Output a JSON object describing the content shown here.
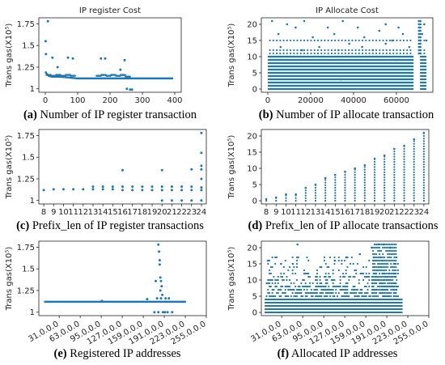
{
  "chart_data": [
    {
      "type": "scatter",
      "title": "IP register Cost",
      "caption_letter": "(a)",
      "caption": " Number of IP register transaction",
      "ylabel": "Trans gas(X10⁵)",
      "xlabel": "",
      "xlim": [
        -20,
        420
      ],
      "ylim": [
        0.96,
        1.82
      ],
      "xticks": [
        0,
        100,
        200,
        300,
        400
      ],
      "xtick_labels": [
        "0",
        "100",
        "200",
        "300",
        "400"
      ],
      "yticks": [
        1,
        1.25,
        1.5,
        1.75
      ],
      "ytick_labels": [
        "1",
        "1.25",
        "1.5",
        "1.75"
      ],
      "baseline": {
        "x": [
          0,
          5,
          10,
          20,
          40,
          60,
          100,
          105,
          150,
          180,
          200,
          240,
          260,
          300,
          395
        ],
        "y": [
          1.2,
          1.17,
          1.15,
          1.14,
          1.14,
          1.135,
          1.12,
          1.12,
          1.12,
          1.12,
          1.12,
          1.12,
          1.12,
          1.12,
          1.12
        ]
      },
      "band": [
        {
          "x": 10,
          "y": 1.16
        },
        {
          "x": 25,
          "y": 1.15
        },
        {
          "x": 40,
          "y": 1.16
        },
        {
          "x": 55,
          "y": 1.15
        },
        {
          "x": 70,
          "y": 1.16
        },
        {
          "x": 85,
          "y": 1.15
        },
        {
          "x": 165,
          "y": 1.15
        },
        {
          "x": 180,
          "y": 1.16
        },
        {
          "x": 195,
          "y": 1.15
        },
        {
          "x": 210,
          "y": 1.16
        },
        {
          "x": 225,
          "y": 1.15
        },
        {
          "x": 240,
          "y": 1.16
        },
        {
          "x": 255,
          "y": 1.14
        }
      ],
      "points": [
        {
          "x": 1,
          "y": 1.55
        },
        {
          "x": 2,
          "y": 1.4
        },
        {
          "x": 8,
          "y": 1.78
        },
        {
          "x": 22,
          "y": 1.36
        },
        {
          "x": 38,
          "y": 1.25
        },
        {
          "x": 70,
          "y": 1.36
        },
        {
          "x": 85,
          "y": 1.35
        },
        {
          "x": 172,
          "y": 1.35
        },
        {
          "x": 185,
          "y": 1.35
        },
        {
          "x": 232,
          "y": 1.22
        },
        {
          "x": 245,
          "y": 1.33
        },
        {
          "x": 252,
          "y": 1.0
        },
        {
          "x": 262,
          "y": 0.99
        },
        {
          "x": 268,
          "y": 0.99
        }
      ]
    },
    {
      "type": "scatter",
      "title": "IP Allocate Cost",
      "caption_letter": "(b)",
      "caption": " Number of IP allocate transaction",
      "ylabel": "Trans gas(X10⁵)",
      "xlabel": "",
      "xlim": [
        -3000,
        77000
      ],
      "ylim": [
        -1,
        22
      ],
      "xticks": [
        0,
        20000,
        40000,
        60000
      ],
      "xtick_labels": [
        "0",
        "20000",
        "40000",
        "60000"
      ],
      "yticks": [
        0,
        5,
        10,
        15,
        20
      ],
      "ytick_labels": [
        "0",
        "5",
        "10",
        "15",
        "20"
      ],
      "level_rows": [
        0,
        1,
        2,
        3,
        4,
        5,
        6,
        7,
        8,
        9,
        10
      ],
      "row_extent": [
        0,
        74000
      ],
      "gap_range": [
        68000,
        71000
      ],
      "scatter_points": [
        {
          "x": 2000,
          "y": 21
        },
        {
          "x": 5000,
          "y": 17
        },
        {
          "x": 9000,
          "y": 20
        },
        {
          "x": 13000,
          "y": 19
        },
        {
          "x": 17000,
          "y": 21
        },
        {
          "x": 21000,
          "y": 16
        },
        {
          "x": 24000,
          "y": 13
        },
        {
          "x": 28000,
          "y": 19
        },
        {
          "x": 31000,
          "y": 17
        },
        {
          "x": 35000,
          "y": 21
        },
        {
          "x": 38000,
          "y": 14
        },
        {
          "x": 42000,
          "y": 19
        },
        {
          "x": 45000,
          "y": 16
        },
        {
          "x": 49000,
          "y": 12
        },
        {
          "x": 52000,
          "y": 18
        },
        {
          "x": 55000,
          "y": 20
        },
        {
          "x": 58000,
          "y": 15
        },
        {
          "x": 61000,
          "y": 19
        },
        {
          "x": 63000,
          "y": 17
        },
        {
          "x": 66000,
          "y": 13
        },
        {
          "x": 71000,
          "y": 21
        },
        {
          "x": 73000,
          "y": 20
        },
        {
          "x": 72000,
          "y": 17
        },
        {
          "x": 74000,
          "y": 15
        },
        {
          "x": 6000,
          "y": 13
        },
        {
          "x": 16000,
          "y": 12
        },
        {
          "x": 33000,
          "y": 12
        },
        {
          "x": 44000,
          "y": 13
        },
        {
          "x": 55000,
          "y": 14
        },
        {
          "x": 34000,
          "y": 3
        },
        {
          "x": 60000,
          "y": 9
        }
      ]
    },
    {
      "type": "scatter",
      "caption_letter": "(c)",
      "caption": " Prefix_len of IP register transactions",
      "ylabel": "Trans gas(X10⁵)",
      "xlabel": "",
      "xlim": [
        7.5,
        24.5
      ],
      "ylim": [
        0.96,
        1.82
      ],
      "xticks": [
        8,
        9,
        10,
        11,
        12,
        13,
        14,
        15,
        16,
        17,
        18,
        19,
        20,
        21,
        22,
        23,
        24
      ],
      "xtick_labels": [
        "8",
        "9",
        "10",
        "11",
        "12",
        "13",
        "14",
        "15",
        "16",
        "17",
        "18",
        "19",
        "20",
        "21",
        "22",
        "23",
        "24"
      ],
      "yticks": [
        1,
        1.25,
        1.5,
        1.75
      ],
      "ytick_labels": [
        "1",
        "1.25",
        "1.5",
        "1.75"
      ],
      "points": [
        {
          "x": 8,
          "y": 1.12
        },
        {
          "x": 9,
          "y": 1.13
        },
        {
          "x": 10,
          "y": 1.13
        },
        {
          "x": 11,
          "y": 1.13
        },
        {
          "x": 12,
          "y": 1.13
        },
        {
          "x": 13,
          "y": 1.13
        },
        {
          "x": 13,
          "y": 1.16
        },
        {
          "x": 14,
          "y": 1.13
        },
        {
          "x": 14,
          "y": 1.16
        },
        {
          "x": 15,
          "y": 1.13
        },
        {
          "x": 15,
          "y": 1.16
        },
        {
          "x": 16,
          "y": 1.12
        },
        {
          "x": 16,
          "y": 1.16
        },
        {
          "x": 16,
          "y": 1.35
        },
        {
          "x": 17,
          "y": 1.12
        },
        {
          "x": 17,
          "y": 1.16
        },
        {
          "x": 18,
          "y": 1.12
        },
        {
          "x": 18,
          "y": 1.16
        },
        {
          "x": 19,
          "y": 1.12
        },
        {
          "x": 19,
          "y": 1.16
        },
        {
          "x": 20,
          "y": 1.12
        },
        {
          "x": 20,
          "y": 1.16
        },
        {
          "x": 20,
          "y": 1.35
        },
        {
          "x": 20,
          "y": 1.0
        },
        {
          "x": 21,
          "y": 1.12
        },
        {
          "x": 21,
          "y": 1.16
        },
        {
          "x": 21,
          "y": 1.0
        },
        {
          "x": 22,
          "y": 1.12
        },
        {
          "x": 22,
          "y": 1.16
        },
        {
          "x": 22,
          "y": 1.0
        },
        {
          "x": 23,
          "y": 1.12
        },
        {
          "x": 23,
          "y": 1.16
        },
        {
          "x": 23,
          "y": 1.36
        },
        {
          "x": 23,
          "y": 1.0
        },
        {
          "x": 24,
          "y": 1.12
        },
        {
          "x": 24,
          "y": 1.15
        },
        {
          "x": 24,
          "y": 1.25
        },
        {
          "x": 24,
          "y": 1.36
        },
        {
          "x": 24,
          "y": 1.4
        },
        {
          "x": 24,
          "y": 1.55
        },
        {
          "x": 24,
          "y": 1.78
        },
        {
          "x": 24,
          "y": 1.0
        }
      ]
    },
    {
      "type": "scatter",
      "caption_letter": "(d)",
      "caption": " Prefix_len of IP allocate transactions",
      "ylabel": "Trans gas(X10⁵)",
      "xlabel": "",
      "xlim": [
        7.5,
        24.5
      ],
      "ylim": [
        -1,
        22
      ],
      "xticks": [
        8,
        9,
        10,
        11,
        12,
        13,
        14,
        15,
        16,
        17,
        18,
        19,
        20,
        21,
        22,
        23,
        24
      ],
      "xtick_labels": [
        "8",
        "9",
        "10",
        "11",
        "12",
        "13",
        "14",
        "15",
        "16",
        "17",
        "18",
        "19",
        "20",
        "21",
        "22",
        "23",
        "24"
      ],
      "yticks": [
        0,
        5,
        10,
        15,
        20
      ],
      "ytick_labels": [
        "0",
        "5",
        "10",
        "15",
        "20"
      ],
      "columns": [
        {
          "x": 8,
          "max": 0.5
        },
        {
          "x": 9,
          "max": 1
        },
        {
          "x": 10,
          "max": 2
        },
        {
          "x": 11,
          "max": 2
        },
        {
          "x": 12,
          "max": 4
        },
        {
          "x": 13,
          "max": 5
        },
        {
          "x": 14,
          "max": 7
        },
        {
          "x": 15,
          "max": 8
        },
        {
          "x": 16,
          "max": 9
        },
        {
          "x": 17,
          "max": 10
        },
        {
          "x": 18,
          "max": 11
        },
        {
          "x": 19,
          "max": 13
        },
        {
          "x": 20,
          "max": 14
        },
        {
          "x": 21,
          "max": 16
        },
        {
          "x": 22,
          "max": 17
        },
        {
          "x": 23,
          "max": 19
        },
        {
          "x": 24,
          "max": 21
        }
      ],
      "column_step": 0.8
    },
    {
      "type": "scatter",
      "caption_letter": "(e)",
      "caption": " Registered IP addresses",
      "ylabel": "Trans gas(X10⁵)",
      "xlabel": "",
      "xlim": [
        0,
        255
      ],
      "ylim": [
        0.96,
        1.82
      ],
      "xticks": [
        31,
        63,
        95,
        127,
        159,
        191,
        223,
        255
      ],
      "xtick_labels": [
        "31.0.0.0",
        "63.0.0.0",
        "95.0.0.0",
        "127.0.0.0",
        "159.0.0.0",
        "191.0.0.0",
        "223.0.0.0",
        "255.0.0.0"
      ],
      "yticks": [
        1,
        1.25,
        1.5,
        1.75
      ],
      "ytick_labels": [
        "1",
        "1.25",
        "1.5",
        "1.75"
      ],
      "baseline": {
        "x": [
          8,
          224
        ],
        "y": [
          1.12,
          1.12
        ]
      },
      "points": [
        {
          "x": 96,
          "y": 1.13
        },
        {
          "x": 165,
          "y": 1.15
        },
        {
          "x": 178,
          "y": 1.36
        },
        {
          "x": 182,
          "y": 1.78
        },
        {
          "x": 183,
          "y": 1.7
        },
        {
          "x": 184,
          "y": 1.6
        },
        {
          "x": 184,
          "y": 1.55
        },
        {
          "x": 185,
          "y": 1.4
        },
        {
          "x": 186,
          "y": 1.36
        },
        {
          "x": 187,
          "y": 1.3
        },
        {
          "x": 185,
          "y": 1.25
        },
        {
          "x": 188,
          "y": 1.2
        },
        {
          "x": 176,
          "y": 1.0
        },
        {
          "x": 182,
          "y": 1.0
        },
        {
          "x": 189,
          "y": 1.0
        },
        {
          "x": 192,
          "y": 1.0
        },
        {
          "x": 180,
          "y": 1.16
        },
        {
          "x": 186,
          "y": 1.16
        },
        {
          "x": 193,
          "y": 1.16
        },
        {
          "x": 198,
          "y": 1.16
        },
        {
          "x": 196,
          "y": 1.0
        },
        {
          "x": 203,
          "y": 1.0
        }
      ]
    },
    {
      "type": "scatter",
      "caption_letter": "(f)",
      "caption": " Allocated IP addresses",
      "ylabel": "Trans gas(X10⁵)",
      "xlabel": "",
      "xlim": [
        0,
        255
      ],
      "ylim": [
        -1,
        22
      ],
      "xticks": [
        31,
        63,
        95,
        127,
        159,
        191,
        223,
        255
      ],
      "xtick_labels": [
        "31.0.0.0",
        "63.0.0.0",
        "95.0.0.0",
        "127.0.0.0",
        "159.0.0.0",
        "191.0.0.0",
        "223.0.0.0",
        "255.0.0.0"
      ],
      "yticks": [
        0,
        5,
        10,
        15,
        20
      ],
      "ytick_labels": [
        "0",
        "5",
        "10",
        "15",
        "20"
      ],
      "dense_rows": [
        0,
        1,
        2,
        3,
        4
      ],
      "dense_extent": [
        5,
        215
      ],
      "cluster_range": [
        170,
        205
      ],
      "cluster_max": 21
    }
  ]
}
